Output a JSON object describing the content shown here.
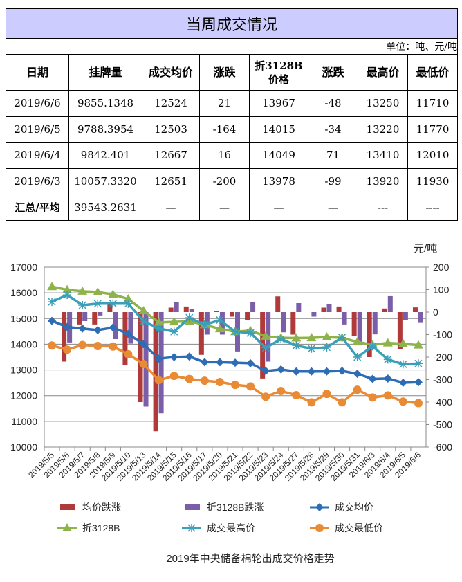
{
  "table": {
    "title": "当周成交情况",
    "unit": "单位：吨、元/吨",
    "headers": [
      "日期",
      "挂牌量",
      "成交均价",
      "涨跌",
      "折3128B价格",
      "涨跌",
      "最高价",
      "最低价"
    ],
    "rows": [
      [
        "2019/6/6",
        "9855.1348",
        "12524",
        "21",
        "13967",
        "-48",
        "13250",
        "11710"
      ],
      [
        "2019/6/5",
        "9788.3954",
        "12503",
        "-164",
        "14015",
        "-34",
        "13220",
        "11770"
      ],
      [
        "2019/6/4",
        "9842.401",
        "12667",
        "16",
        "14049",
        "71",
        "13410",
        "12010"
      ],
      [
        "2019/6/3",
        "10057.3320",
        "12651",
        "-200",
        "13978",
        "-99",
        "13920",
        "11930"
      ],
      [
        "汇总/平均",
        "39543.2631",
        "—",
        "—",
        "—",
        "—",
        "---",
        "----"
      ]
    ]
  },
  "chart_data": {
    "type": "bar+line",
    "title": "2019年中央储备棉轮出成交价格走势",
    "right_unit": "元/吨",
    "left_ylim": [
      10000,
      17000
    ],
    "left_ticks": [
      "10000",
      "11000",
      "12000",
      "13000",
      "14000",
      "15000",
      "16000",
      "17000"
    ],
    "right_ylim": [
      -600,
      200
    ],
    "right_ticks": [
      "-600",
      "-500",
      "-400",
      "-300",
      "-200",
      "-100",
      "0",
      "100",
      "200"
    ],
    "grid": true,
    "legend_position": "bottom",
    "categories": [
      "2019/5/5",
      "2019/5/6",
      "2019/5/7",
      "2019/5/8",
      "2019/5/9",
      "2019/5/10",
      "2019/5/13",
      "2019/5/14",
      "2019/5/15",
      "2019/5/16",
      "2019/5/17",
      "2019/5/20",
      "2019/5/21",
      "2019/5/22",
      "2019/5/23",
      "2019/5/24",
      "2019/5/27",
      "2019/5/28",
      "2019/5/29",
      "2019/5/30",
      "2019/5/31",
      "2019/6/3",
      "2019/6/4",
      "2019/6/5",
      "2019/6/6"
    ],
    "bar_series": [
      {
        "name": "均价跌涨",
        "color": "#b03a3a",
        "axis": "right",
        "values": [
          0,
          -220,
          -55,
          -55,
          40,
          -235,
          -400,
          -530,
          20,
          25,
          -190,
          5,
          -20,
          -35,
          -295,
          70,
          -100,
          0,
          20,
          25,
          -105,
          -200,
          16,
          -164,
          21
        ]
      },
      {
        "name": "折3128B跌涨",
        "color": "#7a5ea8",
        "axis": "right",
        "values": [
          0,
          -135,
          -40,
          -15,
          -120,
          -140,
          -420,
          -450,
          45,
          15,
          -100,
          -100,
          -175,
          45,
          -220,
          -90,
          40,
          -20,
          35,
          -55,
          -135,
          -99,
          71,
          -34,
          -48
        ]
      }
    ],
    "line_series": [
      {
        "name": "成交均价",
        "color": "#2e6db4",
        "marker": "diamond",
        "values": [
          14910,
          14670,
          14610,
          14550,
          14650,
          14400,
          14000,
          13440,
          13500,
          13520,
          13300,
          13300,
          13280,
          13260,
          12960,
          13020,
          12940,
          12940,
          12940,
          12960,
          12850,
          12651,
          12667,
          12503,
          12524
        ]
      },
      {
        "name": "折3128B",
        "color": "#8db34a",
        "marker": "triangle",
        "values": [
          16240,
          16120,
          16060,
          16030,
          15940,
          15760,
          15300,
          14850,
          14870,
          14890,
          14760,
          14600,
          14490,
          14530,
          14310,
          14250,
          14240,
          14250,
          14280,
          14250,
          14090,
          13978,
          14049,
          14015,
          13967
        ]
      },
      {
        "name": "成交最高价",
        "color": "#3a9fb8",
        "marker": "star",
        "values": [
          15650,
          15920,
          15520,
          15580,
          15580,
          15580,
          14890,
          14620,
          14490,
          15030,
          14760,
          14940,
          14490,
          14440,
          13860,
          14200,
          13950,
          13830,
          13880,
          14260,
          13500,
          13920,
          13410,
          13220,
          13250
        ]
      },
      {
        "name": "成交最低价",
        "color": "#e98a34",
        "marker": "circle",
        "values": [
          13950,
          13790,
          13970,
          13930,
          13910,
          13610,
          13230,
          12600,
          12770,
          12650,
          12580,
          12530,
          12420,
          12360,
          11960,
          12180,
          12020,
          11740,
          12070,
          11740,
          12230,
          11930,
          12010,
          11770,
          11710
        ]
      }
    ]
  }
}
